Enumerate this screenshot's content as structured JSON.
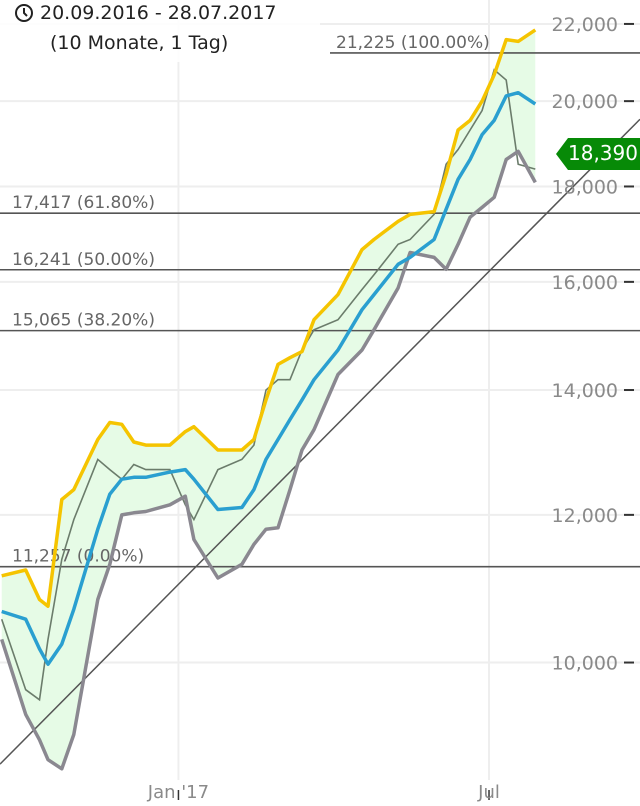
{
  "header": {
    "date_range": "20.09.2016 - 28.07.2017",
    "duration": "(10 Monate, 1 Tag)",
    "icon": "clock-icon"
  },
  "last_price": {
    "label": "18,390",
    "color": "#078a07"
  },
  "colors": {
    "upper_band": "#f5c400",
    "middle_band": "#2a9fd0",
    "lower_band": "#8a8890",
    "band_fill": "#e6fbe6",
    "price": "#6b7c6b",
    "fib_line": "#555555",
    "trend_line": "#555555"
  },
  "chart_data": {
    "type": "line",
    "y_scale": "log",
    "ylim": [
      8650,
      22660
    ],
    "xlim": [
      "2016-09-19",
      "2017-09-27"
    ],
    "grid": true,
    "y_ticks": [
      {
        "value": 22000,
        "label": "22,000"
      },
      {
        "value": 20000,
        "label": "20,000"
      },
      {
        "value": 18000,
        "label": "18,000"
      },
      {
        "value": 16000,
        "label": "16,000"
      },
      {
        "value": 14000,
        "label": "14,000"
      },
      {
        "value": 12000,
        "label": "12,000"
      },
      {
        "value": 10000,
        "label": "10,000"
      }
    ],
    "x_ticks": [
      {
        "date": "2017-01-01",
        "label": "Jan '17"
      },
      {
        "date": "2017-07-01",
        "label": "Jul"
      }
    ],
    "fibonacci_levels": [
      {
        "value": 21225,
        "label": "21,225 (100.00%)"
      },
      {
        "value": 17417,
        "label": "17,417 (61.80%)"
      },
      {
        "value": 16241,
        "label": "16,241 (50.00%)"
      },
      {
        "value": 15065,
        "label": "15,065 (38.20%)"
      },
      {
        "value": 11257,
        "label": "11,257 (0.00%)"
      }
    ],
    "trend_line": [
      {
        "date": "2016-09-20",
        "value": 8840
      },
      {
        "date": "2017-07-28",
        "value": 17170
      }
    ],
    "dates": [
      "2016-09-20",
      "2016-10-04",
      "2016-10-12",
      "2016-10-17",
      "2016-10-25",
      "2016-11-01",
      "2016-11-15",
      "2016-11-22",
      "2016-11-29",
      "2016-12-06",
      "2016-12-13",
      "2016-12-27",
      "2017-01-05",
      "2017-01-10",
      "2017-01-24",
      "2017-02-07",
      "2017-02-14",
      "2017-02-21",
      "2017-02-28",
      "2017-03-07",
      "2017-03-14",
      "2017-03-21",
      "2017-04-04",
      "2017-04-18",
      "2017-04-25",
      "2017-05-09",
      "2017-05-16",
      "2017-05-30",
      "2017-06-06",
      "2017-06-13",
      "2017-06-20",
      "2017-06-27",
      "2017-07-04",
      "2017-07-11",
      "2017-07-18",
      "2017-07-28"
    ],
    "series": [
      {
        "key": "upper",
        "values": [
          11130,
          11210,
          10810,
          10720,
          12230,
          12380,
          13170,
          13450,
          13420,
          13130,
          13080,
          13080,
          13300,
          13380,
          13000,
          13000,
          13170,
          13830,
          14450,
          14570,
          14680,
          15270,
          15750,
          16650,
          16860,
          17240,
          17390,
          17450,
          18270,
          19300,
          19530,
          20000,
          20660,
          21580,
          21530,
          21840
        ]
      },
      {
        "key": "middle",
        "values": [
          10650,
          10550,
          10170,
          9980,
          10230,
          10680,
          11790,
          12310,
          12540,
          12570,
          12570,
          12650,
          12690,
          12540,
          12080,
          12110,
          12380,
          12850,
          13170,
          13500,
          13830,
          14180,
          14710,
          15460,
          15750,
          16350,
          16490,
          16860,
          17500,
          18160,
          18610,
          19190,
          19530,
          20130,
          20210,
          19930
        ]
      },
      {
        "key": "lower",
        "values": [
          10290,
          9380,
          9090,
          8870,
          8770,
          9150,
          10810,
          11290,
          12000,
          12030,
          12050,
          12150,
          12280,
          11640,
          11100,
          11290,
          11570,
          11790,
          11810,
          12380,
          13000,
          13330,
          14270,
          14710,
          15080,
          15880,
          16590,
          16490,
          16250,
          16760,
          17330,
          17540,
          17760,
          18610,
          18800,
          18090
        ]
      },
      {
        "key": "price",
        "values": [
          10550,
          9670,
          9550,
          10290,
          11360,
          11930,
          12850,
          12690,
          12540,
          12770,
          12690,
          12690,
          12150,
          11930,
          12690,
          12850,
          13080,
          14000,
          14180,
          14180,
          14710,
          15080,
          15270,
          15850,
          16140,
          16760,
          16860,
          17390,
          18500,
          18840,
          19300,
          19770,
          20790,
          20530,
          18500,
          18390
        ]
      }
    ]
  }
}
